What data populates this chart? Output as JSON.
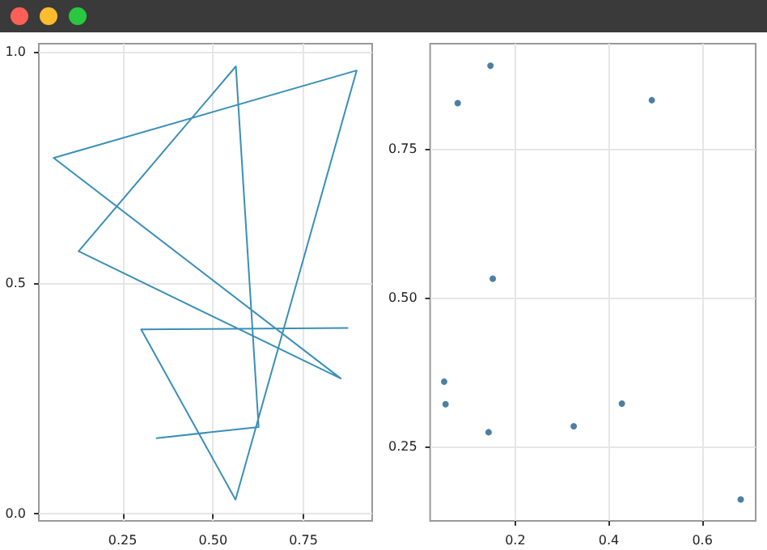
{
  "chart_data": [
    {
      "type": "line",
      "x": [
        0.344,
        0.626,
        0.563,
        0.128,
        0.853,
        0.059,
        0.897,
        0.562,
        0.301,
        0.872
      ],
      "series": [
        {
          "color": "#3a8fb7",
          "values": [
            0.164,
            0.188,
            0.968,
            0.568,
            0.293,
            0.77,
            0.959,
            0.031,
            0.399,
            0.402
          ]
        }
      ],
      "xlim": [
        0.018,
        0.94
      ],
      "ylim": [
        -0.015,
        1.017
      ],
      "xticks": [
        0.25,
        {
          "value": 0.5,
          "label": "0.50"
        },
        0.75
      ],
      "yticks": [
        {
          "value": 0,
          "label": "0.0"
        },
        0.5,
        {
          "value": 1,
          "label": "1.0"
        }
      ],
      "grid": true,
      "line_style": "solid"
    },
    {
      "type": "scatter",
      "x": [
        0.147,
        0.077,
        0.492,
        0.152,
        0.048,
        0.051,
        0.143,
        0.325,
        0.428,
        0.682
      ],
      "series": [
        {
          "color": "#1f5f8b",
          "values": [
            0.89,
            0.827,
            0.832,
            0.532,
            0.359,
            0.321,
            0.274,
            0.284,
            0.322,
            0.161
          ]
        }
      ],
      "xlim": [
        0.018,
        0.714
      ],
      "ylim": [
        0.125,
        0.927
      ],
      "xticks": [
        0.2,
        0.4,
        0.6
      ],
      "yticks": [
        0.25,
        {
          "value": 0.5,
          "label": "0.50"
        },
        0.75
      ],
      "grid": true,
      "marker": "circle"
    }
  ]
}
